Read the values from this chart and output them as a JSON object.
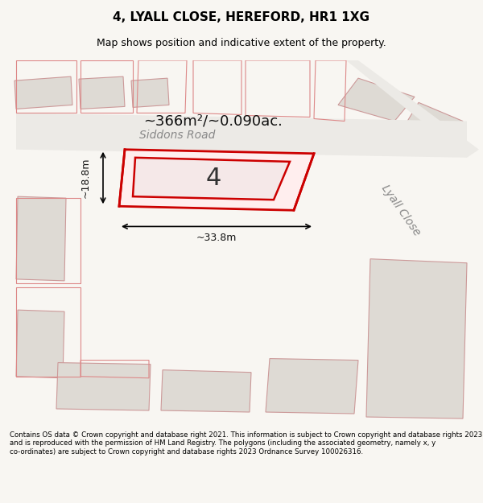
{
  "title": "4, LYALL CLOSE, HEREFORD, HR1 1XG",
  "subtitle": "Map shows position and indicative extent of the property.",
  "footer": "Contains OS data © Crown copyright and database right 2021. This information is subject to Crown copyright and database rights 2023 and is reproduced with the permission of HM Land Registry. The polygons (including the associated geometry, namely x, y co-ordinates) are subject to Crown copyright and database rights 2023 Ordnance Survey 100026316.",
  "area_label": "~366m²/~0.090ac.",
  "width_label": "~33.8m",
  "height_label": "~18.8m",
  "property_number": "4",
  "bg_color": "#f0eeea",
  "map_bg": "#f5f3ef",
  "road_label_siddons": "Siddons Road",
  "road_label_lyall": "Lyall Close",
  "highlight_color": "#cc0000",
  "highlight_fill": "#ffdddd",
  "building_fill": "#e8e4de",
  "neighbor_stroke": "#cc8888",
  "neighbor_fill": "#f8f0ee",
  "road_fill": "#ffffff"
}
